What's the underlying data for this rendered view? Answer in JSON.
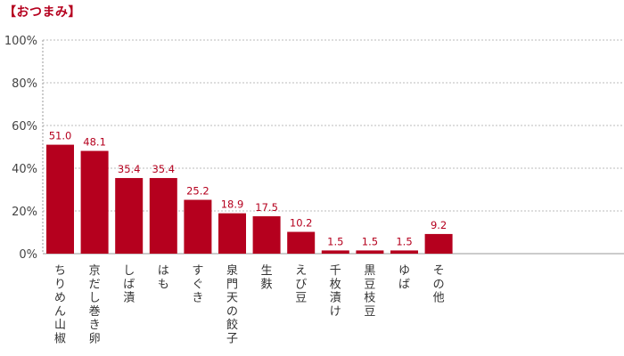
{
  "title": "【おつまみ】",
  "chart_data": {
    "type": "bar",
    "title": "【おつまみ】",
    "xlabel": "",
    "ylabel": "",
    "ylim": [
      0,
      100
    ],
    "yticks": [
      "0%",
      "20%",
      "40%",
      "60%",
      "80%",
      "100%"
    ],
    "ytick_values": [
      0,
      20,
      40,
      60,
      80,
      100
    ],
    "grid": "horizontal dotted",
    "bar_color": "#b5001e",
    "label_color": "#b5001e",
    "categories": [
      "ちりめん山椒",
      "京だし巻き卵",
      "しば漬",
      "はも",
      "すぐき",
      "泉門天の餃子",
      "生麩",
      "えび豆",
      "千枚漬け",
      "黒豆枝豆",
      "ゆば",
      "その他"
    ],
    "values": [
      51.0,
      48.1,
      35.4,
      35.4,
      25.2,
      18.9,
      17.5,
      10.2,
      1.5,
      1.5,
      1.5,
      9.2
    ],
    "data_labels": [
      "51.0",
      "48.1",
      "35.4",
      "35.4",
      "25.2",
      "18.9",
      "17.5",
      "10.2",
      "1.5",
      "1.5",
      "1.5",
      "9.2"
    ]
  }
}
